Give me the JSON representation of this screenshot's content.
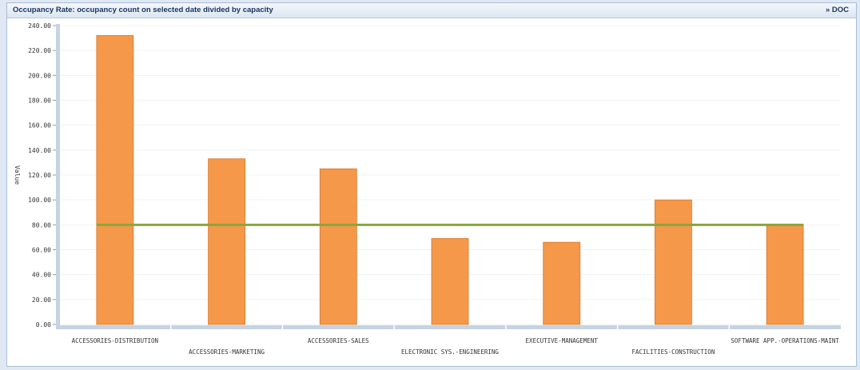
{
  "panel": {
    "title": "Occupancy Rate: occupancy count on selected date divided by capacity",
    "link": "» DOC"
  },
  "chart_data": {
    "type": "bar",
    "ylabel": "Value",
    "xlabel": "",
    "ylim": [
      0,
      240
    ],
    "yticks": [
      "0.00",
      "20.00",
      "40.00",
      "60.00",
      "80.00",
      "100.00",
      "120.00",
      "140.00",
      "160.00",
      "180.00",
      "200.00",
      "220.00",
      "240.00"
    ],
    "categories": [
      "ACCESSORIES-DISTRIBUTION",
      "ACCESSORIES-MARKETING",
      "ACCESSORIES-SALES",
      "ELECTRONIC SYS.-ENGINEERING",
      "EXECUTIVE-MANAGEMENT",
      "FACILITIES-CONSTRUCTION",
      "SOFTWARE APP.-OPERATIONS-MAINT"
    ],
    "values": [
      232,
      133,
      125,
      69,
      66,
      100,
      80
    ],
    "reference_line": 80,
    "grid": true,
    "colors": {
      "bar": "#f5984a",
      "bar_edge": "#d9772b",
      "line": "#8aa53c",
      "axis": "#c5d3e2"
    }
  }
}
